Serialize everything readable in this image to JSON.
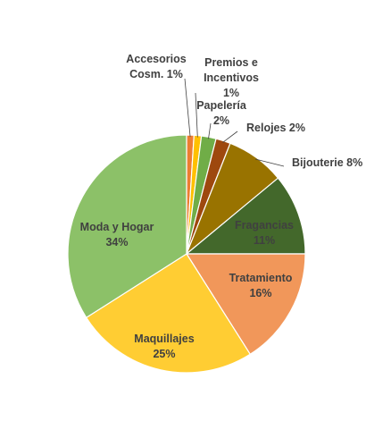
{
  "chart_data": {
    "type": "pie",
    "title": "",
    "slices": [
      {
        "label_lines": [
          "Accesorios",
          "Cosm. 1%"
        ],
        "value": 1,
        "color": "#ed7d31"
      },
      {
        "label_lines": [
          "Premios e",
          "Incentivos",
          "1%"
        ],
        "value": 1,
        "color": "#ffc000"
      },
      {
        "label_lines": [
          "Papelería",
          "2%"
        ],
        "value": 2,
        "color": "#70ad47"
      },
      {
        "label_lines": [
          "Relojes 2%"
        ],
        "value": 2,
        "color": "#9e480e"
      },
      {
        "label_lines": [
          "Bijouterie 8%"
        ],
        "value": 8,
        "color": "#997300"
      },
      {
        "label_lines": [
          "Fragancias",
          "11%"
        ],
        "value": 11,
        "color": "#43682b"
      },
      {
        "label_lines": [
          "Tratamiento",
          "16%"
        ],
        "value": 16,
        "color": "#f1975a"
      },
      {
        "label_lines": [
          "Maquillajes",
          "25%"
        ],
        "value": 25,
        "color": "#ffcd33"
      },
      {
        "label_lines": [
          "Moda y Hogar",
          "34%"
        ],
        "value": 34,
        "color": "#8cc168"
      }
    ]
  }
}
